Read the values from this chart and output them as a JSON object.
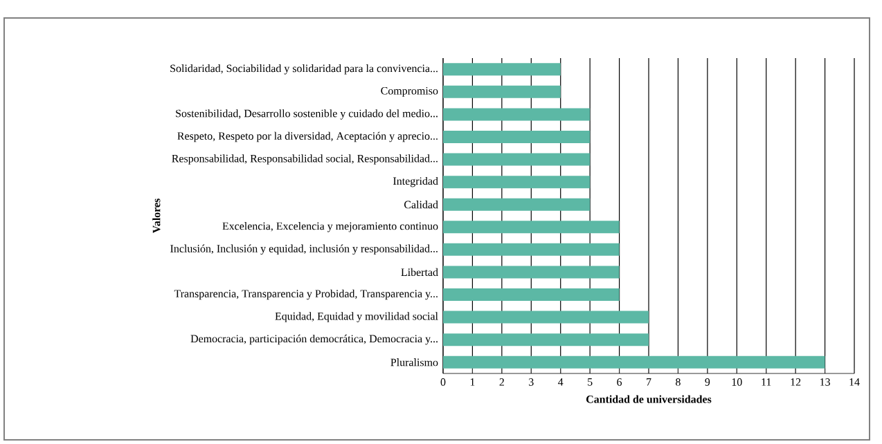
{
  "chart_data": {
    "type": "bar",
    "orientation": "horizontal",
    "xlabel": "Cantidad de universidades",
    "ylabel": "Valores",
    "categories": [
      "Solidaridad, Sociabilidad y solidaridad para la convivencia...",
      "Compromiso",
      "Sostenibilidad, Desarrollo sostenible y cuidado del medio...",
      "Respeto, Respeto por la diversidad, Aceptación y aprecio...",
      "Responsabilidad, Responsabilidad social, Responsabilidad...",
      "Integridad",
      "Calidad",
      "Excelencia, Excelencia y mejoramiento continuo",
      "Inclusión, Inclusión y equidad, inclusión y responsabilidad...",
      "Libertad",
      "Transparencia, Transparencia y Probidad, Transparencia y...",
      "Equidad, Equidad y movilidad social",
      "Democracia, participación democrática, Democracia y...",
      "Pluralismo"
    ],
    "values": [
      4,
      4,
      5,
      5,
      5,
      5,
      5,
      6,
      6,
      6,
      6,
      7,
      7,
      13
    ],
    "color": "#5cb8a5",
    "xlim": [
      0,
      14
    ],
    "xticks": [
      0,
      1,
      2,
      3,
      4,
      5,
      6,
      7,
      8,
      9,
      10,
      11,
      12,
      13,
      14
    ],
    "grid": "x"
  }
}
